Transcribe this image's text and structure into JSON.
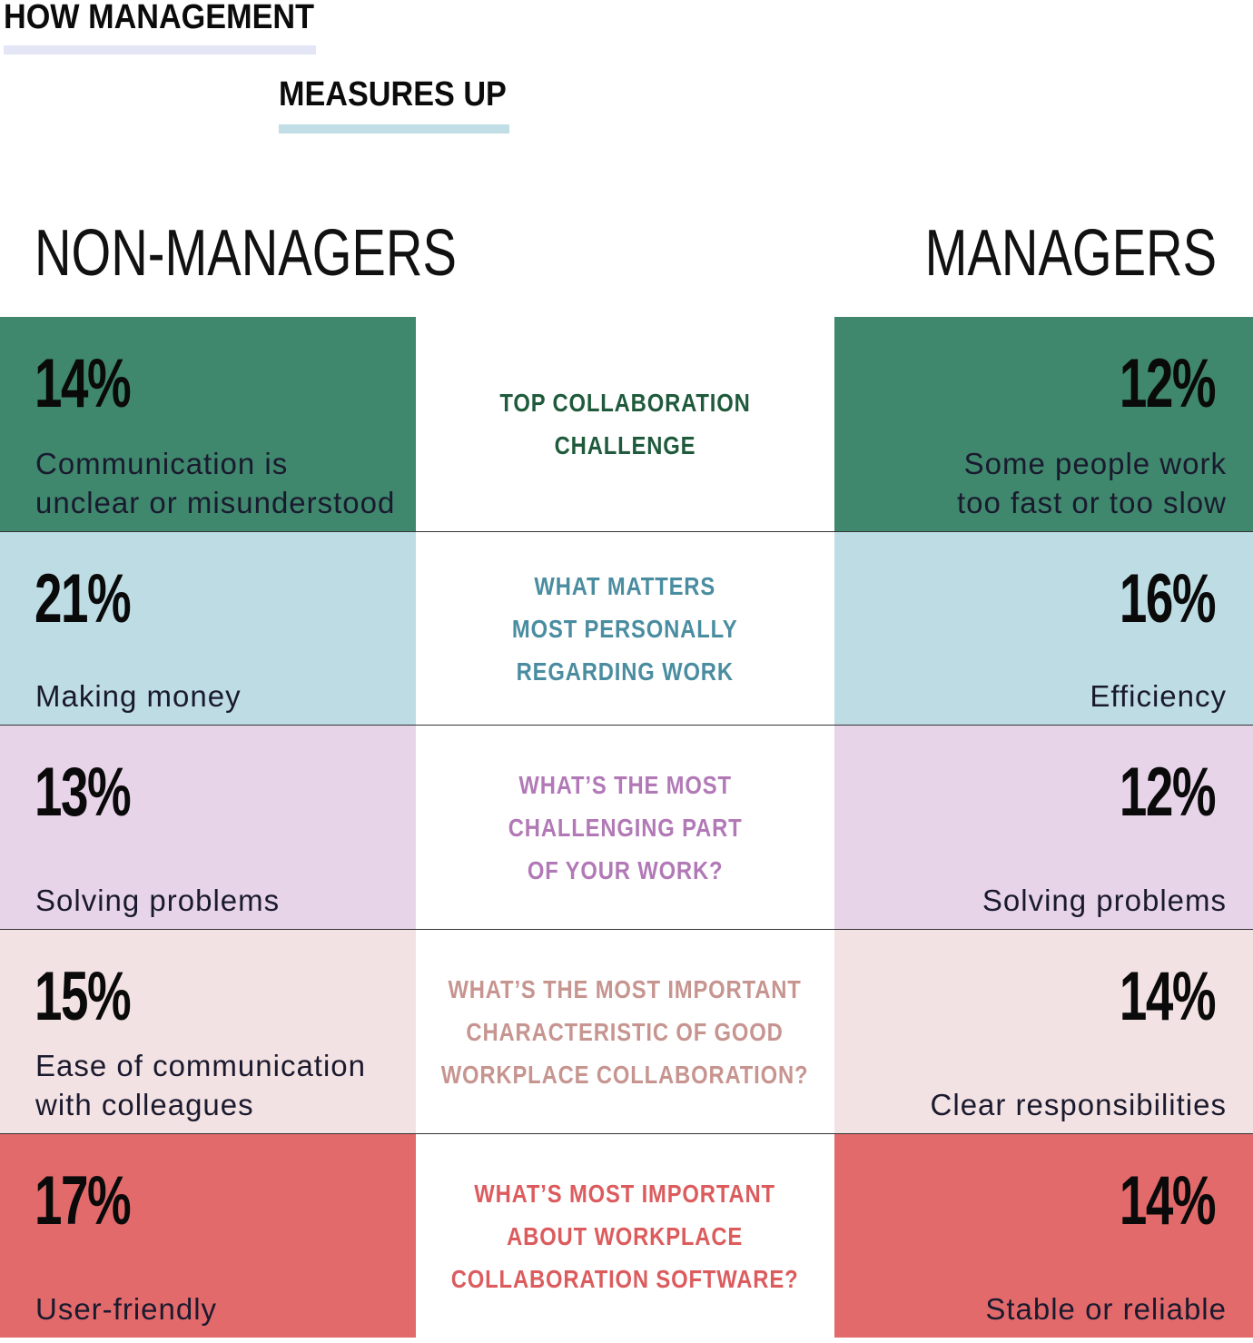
{
  "title": {
    "line1": "HOW MANAGEMENT",
    "line2": "MEASURES UP"
  },
  "columns": {
    "left": "NON-MANAGERS",
    "right": "MANAGERS"
  },
  "rows": [
    {
      "question": [
        "TOP COLLABORATION",
        "CHALLENGE"
      ],
      "non_managers": {
        "percent": "14%",
        "answer": [
          "Communication is",
          "unclear or misunderstood"
        ]
      },
      "managers": {
        "percent": "12%",
        "answer": [
          "Some people work",
          "too fast or too slow"
        ]
      },
      "colors": {
        "bg": "#3f876d",
        "question": "#1e5a3b"
      }
    },
    {
      "question": [
        "WHAT MATTERS",
        "MOST PERSONALLY",
        "REGARDING WORK"
      ],
      "non_managers": {
        "percent": "21%",
        "answer": [
          "Making money"
        ]
      },
      "managers": {
        "percent": "16%",
        "answer": [
          "Efficiency"
        ]
      },
      "colors": {
        "bg": "#bedce4",
        "question": "#4a8da0"
      }
    },
    {
      "question": [
        "WHAT’S THE MOST",
        "CHALLENGING PART",
        "OF YOUR WORK?"
      ],
      "non_managers": {
        "percent": "13%",
        "answer": [
          "Solving problems"
        ]
      },
      "managers": {
        "percent": "12%",
        "answer": [
          "Solving problems"
        ]
      },
      "colors": {
        "bg": "#e8d4e9",
        "question": "#b279b7"
      }
    },
    {
      "question": [
        "WHAT’S THE MOST IMPORTANT",
        "CHARACTERISTIC OF GOOD",
        "WORKPLACE COLLABORATION?"
      ],
      "non_managers": {
        "percent": "15%",
        "answer": [
          "Ease of communication",
          "with colleagues"
        ]
      },
      "managers": {
        "percent": "14%",
        "answer": [
          "Clear responsibilities"
        ]
      },
      "colors": {
        "bg": "#f3e2e3",
        "question": "#c79590"
      }
    },
    {
      "question": [
        "WHAT’S MOST IMPORTANT",
        "ABOUT WORKPLACE",
        "COLLABORATION SOFTWARE?"
      ],
      "non_managers": {
        "percent": "17%",
        "answer": [
          "User-friendly"
        ]
      },
      "managers": {
        "percent": "14%",
        "answer": [
          "Stable or reliable"
        ]
      },
      "colors": {
        "bg": "#e26a6b",
        "question": "#dc5c5e"
      }
    }
  ]
}
